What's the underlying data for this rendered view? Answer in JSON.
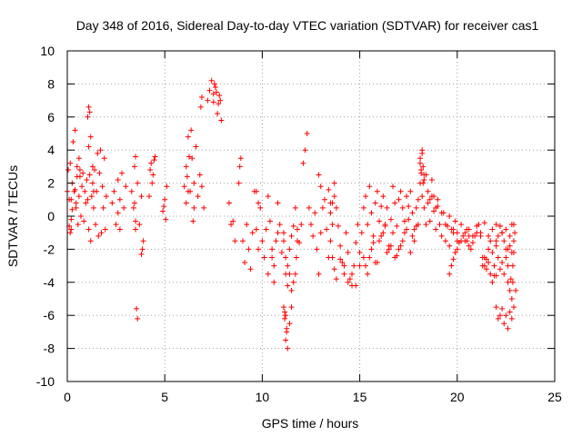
{
  "chart_data": {
    "type": "scatter",
    "title": "Day 348 of 2016, Sidereal Day-to-day VTEC variation (SDTVAR) for receiver cas1",
    "xlabel": "GPS time / hours",
    "ylabel": "SDTVAR / TECUs",
    "xlim": [
      0,
      25
    ],
    "ylim": [
      -10,
      10
    ],
    "x_ticks": [
      "0",
      "5",
      "10",
      "15",
      "20",
      "25"
    ],
    "y_ticks": [
      "-10",
      "-8",
      "-6",
      "-4",
      "-2",
      "0",
      "2",
      "4",
      "6",
      "8",
      "10"
    ],
    "grid": true,
    "marker": "+",
    "color": "#ff0000",
    "series": [
      {
        "name": "cas1",
        "x": [
          0.0,
          0.05,
          0.1,
          0.15,
          0.2,
          0.25,
          0.3,
          0.35,
          0.4,
          0.45,
          0.5,
          0.55,
          0.6,
          0.65,
          0.7,
          0.75,
          0.8,
          0.85,
          0.9,
          0.95,
          1.0,
          1.05,
          1.1,
          1.15,
          1.2,
          1.25,
          1.3,
          1.35,
          1.4,
          1.45,
          1.5,
          1.55,
          1.6,
          1.65,
          1.7,
          1.75,
          1.8,
          1.85,
          1.9,
          1.95,
          2.0,
          0.1,
          0.15,
          0.2,
          0.4,
          0.45,
          0.5,
          1.05,
          1.1,
          1.15,
          1.1,
          1.2,
          0.2,
          0.25,
          0.6,
          0.65,
          1.3,
          1.35,
          2.3,
          2.4,
          2.5,
          2.6,
          2.7,
          2.8,
          2.9,
          3.0,
          2.6,
          2.7,
          3.3,
          3.4,
          3.5,
          3.6,
          3.7,
          3.8,
          3.9,
          3.45,
          3.5,
          3.8,
          3.85,
          3.55,
          3.6,
          3.45,
          3.5,
          4.2,
          4.3,
          4.4,
          4.5,
          4.25,
          4.35,
          4.45,
          4.9,
          5.0,
          5.1,
          4.95,
          5.05,
          6.0,
          6.1,
          6.2,
          6.3,
          6.4,
          6.5,
          6.6,
          6.7,
          6.8,
          6.9,
          7.0,
          6.15,
          6.25,
          6.35,
          6.1,
          6.2,
          6.45,
          6.5,
          6.85,
          6.9,
          7.2,
          7.3,
          7.4,
          7.5,
          7.6,
          7.7,
          7.8,
          7.9,
          7.55,
          7.65,
          7.75,
          7.85,
          7.5,
          8.3,
          8.4,
          8.5,
          8.6,
          8.8,
          8.9,
          8.85,
          9.0,
          9.1,
          9.2,
          9.3,
          9.4,
          9.5,
          9.6,
          9.7,
          9.8,
          9.9,
          10.0,
          10.1,
          10.2,
          10.3,
          10.4,
          10.5,
          10.6,
          10.7,
          10.8,
          10.9,
          11.0,
          11.1,
          11.2,
          11.3,
          11.4,
          11.5,
          11.6,
          11.7,
          11.8,
          11.9,
          12.0,
          9.7,
          9.8,
          10.3,
          10.5,
          10.6,
          10.8,
          11.1,
          11.2,
          11.3,
          11.4,
          11.5,
          11.6,
          11.7,
          11.75,
          11.8,
          11.2,
          11.25,
          11.3,
          11.4,
          11.5,
          11.1,
          11.15,
          11.2,
          11.25,
          11.15,
          12.1,
          12.2,
          12.3,
          12.4,
          12.5,
          12.6,
          12.7,
          12.8,
          12.9,
          13.0,
          13.1,
          13.2,
          13.3,
          13.4,
          13.5,
          13.6,
          13.7,
          13.8,
          13.9,
          14.0,
          14.1,
          14.2,
          14.3,
          14.4,
          14.5,
          14.6,
          14.7,
          14.8,
          14.9,
          15.0,
          12.9,
          13.0,
          13.6,
          13.7,
          13.8,
          14.0,
          14.2,
          14.4,
          14.6,
          14.8,
          15.0,
          13.5,
          13.6,
          13.7,
          13.4,
          13.5,
          15.1,
          15.2,
          15.3,
          15.4,
          15.5,
          15.6,
          15.7,
          15.8,
          15.9,
          16.0,
          16.1,
          16.2,
          16.3,
          16.4,
          16.5,
          16.6,
          16.7,
          16.8,
          16.9,
          17.0,
          17.1,
          17.2,
          17.3,
          17.4,
          17.5,
          17.6,
          17.7,
          17.8,
          17.9,
          18.0,
          15.2,
          15.4,
          15.6,
          15.8,
          16.0,
          16.2,
          16.4,
          16.6,
          16.8,
          17.0,
          17.2,
          17.4,
          17.6,
          17.8,
          18.0,
          15.3,
          15.5,
          15.7,
          15.9,
          16.1,
          16.3,
          16.5,
          16.7,
          16.9,
          17.1,
          17.3,
          17.5,
          17.7,
          17.9,
          18.1,
          18.2,
          18.3,
          18.4,
          18.5,
          18.6,
          18.7,
          18.8,
          18.9,
          19.0,
          19.1,
          19.2,
          19.3,
          19.4,
          19.5,
          19.6,
          19.7,
          19.8,
          19.9,
          20.0,
          18.1,
          18.15,
          18.2,
          18.25,
          18.3,
          18.2,
          18.3,
          18.1,
          18.15,
          18.25,
          18.4,
          18.5,
          18.6,
          18.7,
          18.8,
          18.9,
          19.0,
          19.2,
          19.4,
          19.6,
          19.8,
          20.0,
          20.2,
          20.4,
          20.6,
          20.8,
          21.0,
          21.2,
          21.4,
          21.6,
          21.8,
          22.0,
          19.6,
          19.7,
          19.8,
          19.9,
          20.0,
          20.1,
          20.2,
          20.3,
          20.4,
          20.5,
          20.6,
          20.7,
          20.8,
          20.9,
          21.0,
          20.5,
          20.6,
          21.1,
          21.2,
          21.3,
          21.4,
          21.5,
          21.6,
          21.7,
          21.8,
          21.9,
          22.0,
          22.1,
          22.2,
          22.3,
          21.3,
          21.4,
          21.5,
          21.6,
          21.7,
          21.8,
          21.9,
          22.0,
          22.0,
          22.1,
          22.2,
          22.3,
          22.4,
          22.5,
          22.6,
          22.7,
          22.8,
          22.9,
          23.0,
          22.0,
          22.1,
          22.2,
          22.3,
          22.4,
          22.5,
          22.6,
          22.7,
          22.75,
          22.8,
          22.85,
          22.9,
          22.2,
          22.3,
          22.4,
          22.5,
          22.6,
          22.7,
          22.8,
          22.9,
          22.5,
          22.6,
          22.7,
          22.8,
          22.85,
          22.9,
          22.95
        ],
        "y": [
          1.5,
          2.8,
          1.0,
          3.2,
          -0.8,
          2.0,
          4.5,
          1.5,
          5.2,
          0.5,
          3.0,
          -0.5,
          1.2,
          2.4,
          0.0,
          1.8,
          2.6,
          -0.3,
          1.5,
          0.8,
          2.2,
          1.0,
          -0.8,
          2.5,
          -1.5,
          1.2,
          3.0,
          0.5,
          2.8,
          -0.5,
          1.5,
          3.8,
          -1.2,
          2.6,
          4.0,
          -1.0,
          1.8,
          0.5,
          3.5,
          -0.8,
          1.2,
          -0.6,
          -1.0,
          -0.2,
          1.6,
          0.8,
          2.4,
          6.0,
          6.6,
          6.3,
          4.2,
          4.8,
          1.0,
          0.4,
          3.5,
          2.8,
          2.0,
          1.5,
          0.8,
          1.5,
          -0.5,
          2.2,
          1.0,
          2.6,
          0.5,
          1.8,
          0.2,
          -0.8,
          1.5,
          0.5,
          -0.8,
          2.0,
          -0.5,
          1.2,
          -1.5,
          3.0,
          3.6,
          -2.3,
          -2.0,
          -5.6,
          -6.2,
          0.8,
          -0.3,
          1.2,
          3.2,
          2.5,
          3.6,
          2.8,
          2.0,
          3.4,
          0.3,
          1.0,
          1.8,
          0.6,
          -0.2,
          1.8,
          3.0,
          4.8,
          1.5,
          3.5,
          2.0,
          4.2,
          1.2,
          2.5,
          1.8,
          0.5,
          2.4,
          3.6,
          5.2,
          0.8,
          1.5,
          -0.3,
          0.5,
          6.6,
          7.2,
          7.0,
          7.6,
          8.2,
          6.9,
          7.8,
          6.2,
          7.3,
          5.8,
          8.0,
          7.5,
          6.8,
          7.0,
          7.4,
          0.8,
          -0.5,
          -0.3,
          -1.5,
          2.0,
          3.5,
          3.0,
          -1.5,
          -2.8,
          -0.5,
          -2.0,
          -3.2,
          -1.0,
          1.5,
          -0.8,
          -2.0,
          0.5,
          -1.5,
          -2.5,
          -0.8,
          1.2,
          -0.3,
          -2.0,
          -3.0,
          -1.5,
          0.8,
          -0.5,
          -2.2,
          -1.0,
          -3.5,
          -4.2,
          -2.0,
          -1.2,
          -0.6,
          0.5,
          -0.8,
          -1.6,
          -0.5,
          1.5,
          0.8,
          -3.5,
          -2.5,
          -4.0,
          -1.0,
          -1.5,
          -2.5,
          -3.0,
          -3.5,
          -4.5,
          -4.0,
          -3.5,
          -2.5,
          -1.5,
          -6.0,
          -7.0,
          -8.0,
          -6.5,
          -5.5,
          -5.5,
          -6.2,
          -7.5,
          -6.8,
          -5.8,
          3.2,
          4.0,
          5.0,
          0.5,
          -0.5,
          -1.2,
          0.2,
          -2.0,
          -3.5,
          -1.0,
          0.5,
          1.0,
          -0.8,
          -2.5,
          -1.5,
          0.8,
          2.0,
          0.5,
          -0.6,
          -1.8,
          -2.8,
          -3.5,
          -1.0,
          -2.2,
          -3.8,
          -4.2,
          -3.0,
          -1.6,
          -0.5,
          -2.2,
          2.5,
          1.8,
          -2.5,
          -3.2,
          -3.8,
          -2.6,
          -3.0,
          -4.0,
          -3.5,
          -4.2,
          -3.0,
          0.2,
          -0.5,
          1.2,
          1.6,
          0.8,
          -1.0,
          0.5,
          1.2,
          -0.5,
          1.8,
          0.2,
          -1.2,
          0.8,
          1.5,
          -0.3,
          0.6,
          1.2,
          -0.5,
          0.5,
          -1.8,
          -0.2,
          1.8,
          0.8,
          -0.6,
          1.0,
          1.5,
          0.5,
          -0.3,
          1.2,
          0.6,
          1.5,
          0.2,
          -0.8,
          0.5,
          1.0,
          -2.5,
          -3.5,
          -2.0,
          -2.8,
          -1.5,
          -1.0,
          -2.2,
          -1.8,
          -2.5,
          -2.0,
          -1.5,
          -0.8,
          -2.2,
          -1.5,
          -0.5,
          -3.0,
          -2.5,
          -1.6,
          -2.8,
          -1.2,
          -0.6,
          -2.0,
          -1.0,
          -2.4,
          -1.8,
          -1.0,
          -0.2,
          -1.2,
          -0.6,
          2.0,
          1.2,
          0.5,
          -0.5,
          0.8,
          -0.3,
          1.2,
          0.3,
          -0.8,
          0.6,
          -0.5,
          -1.2,
          0.2,
          -1.5,
          -0.6,
          -1.8,
          -0.8,
          -1.0,
          -0.3,
          -1.5,
          3.5,
          2.8,
          3.8,
          3.0,
          2.5,
          4.0,
          2.2,
          3.2,
          2.6,
          2.0,
          2.5,
          1.5,
          1.0,
          2.2,
          1.2,
          0.5,
          1.0,
          0.2,
          -0.5,
          0.0,
          -0.8,
          -1.0,
          -0.5,
          -1.5,
          -0.8,
          -1.2,
          -0.6,
          -1.0,
          -0.4,
          -1.2,
          -0.8,
          -0.5,
          -3.5,
          -3.0,
          -2.6,
          -2.2,
          -2.0,
          -1.6,
          -1.5,
          -1.2,
          -1.0,
          -1.5,
          -1.8,
          -2.0,
          -1.6,
          -1.2,
          -1.0,
          -0.8,
          -1.2,
          -0.5,
          -1.2,
          -2.5,
          -3.0,
          -2.6,
          -2.0,
          -1.5,
          -2.2,
          -3.6,
          -1.8,
          -1.2,
          -0.6,
          -1.0,
          -3.0,
          -2.5,
          -3.2,
          -2.8,
          -3.5,
          -4.0,
          -3.0,
          -3.6,
          -5.5,
          -6.2,
          -6.0,
          -5.6,
          -6.5,
          -6.0,
          -6.8,
          -5.8,
          -6.2,
          -5.5,
          -4.5,
          -1.5,
          -2.5,
          -3.2,
          -2.8,
          -3.5,
          -2.0,
          -4.0,
          -4.5,
          -3.8,
          -5.0,
          -3.0,
          -2.2,
          -0.6,
          -1.0,
          -1.5,
          -0.8,
          -2.0,
          -1.2,
          -0.5,
          -1.5,
          -2.5,
          -3.0,
          -1.8,
          -2.2,
          -4.0,
          -0.5,
          -1.0
        ]
      }
    ]
  }
}
